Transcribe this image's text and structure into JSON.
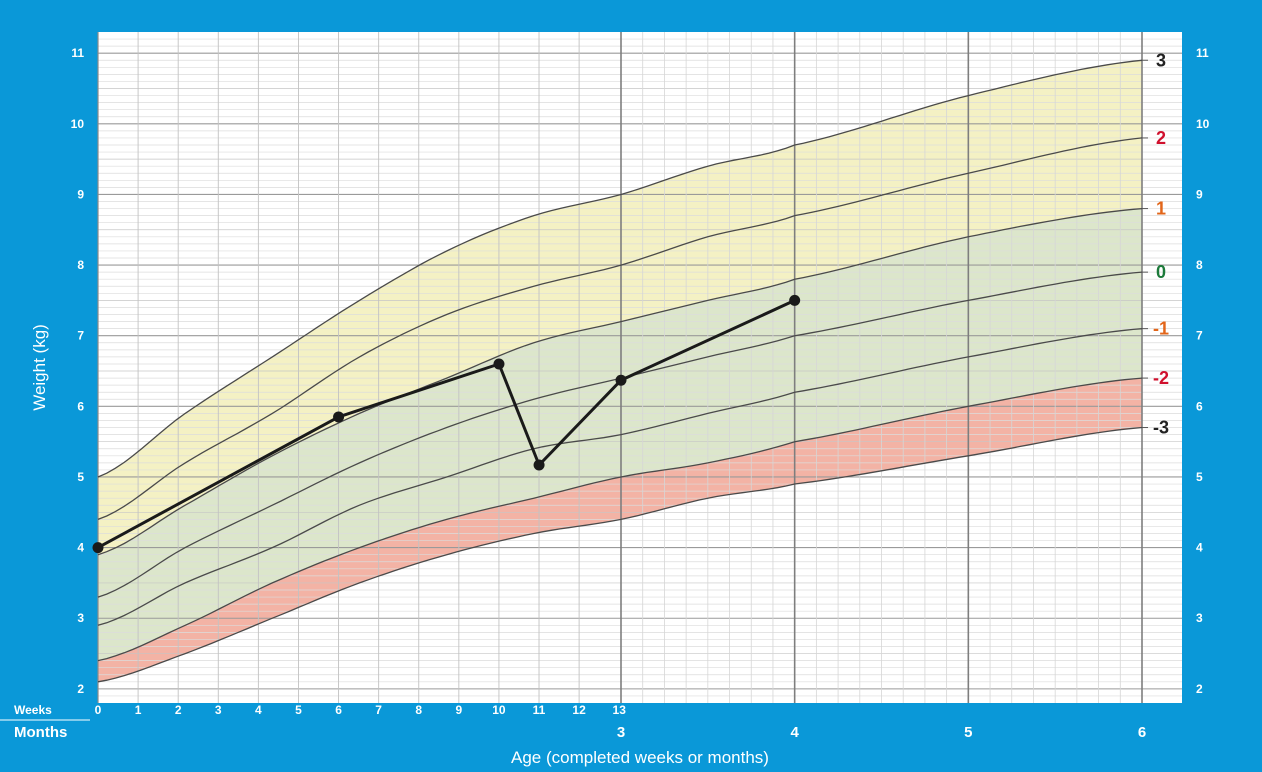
{
  "chart_data": {
    "type": "line",
    "title": "",
    "ylabel": "Weight (kg)",
    "xlabel": "Age (completed weeks or months)",
    "ylim": [
      1.8,
      11.3
    ],
    "yticks": [
      "2",
      "3",
      "4",
      "5",
      "6",
      "7",
      "8",
      "9",
      "10",
      "11"
    ],
    "x_row_labels": {
      "weeks": "Weeks",
      "months": "Months"
    },
    "week_ticks": [
      "0",
      "1",
      "2",
      "3",
      "4",
      "5",
      "6",
      "7",
      "8",
      "9",
      "10",
      "11",
      "12",
      "13"
    ],
    "month_ticks": [
      "3",
      "4",
      "5",
      "6"
    ],
    "zscore_labels": [
      {
        "label": "3",
        "color": "#222222"
      },
      {
        "label": "2",
        "color": "#d0102d"
      },
      {
        "label": "1",
        "color": "#e2661a"
      },
      {
        "label": "0",
        "color": "#1c7a3a"
      },
      {
        "label": "-1",
        "color": "#e2661a"
      },
      {
        "label": "-2",
        "color": "#d0102d"
      },
      {
        "label": "-3",
        "color": "#222222"
      }
    ],
    "reference_curves": {
      "age_months": [
        0,
        0.5,
        1,
        1.5,
        2,
        2.5,
        3,
        3.5,
        4,
        5,
        6
      ],
      "series": [
        {
          "name": "3",
          "values": [
            5.0,
            5.9,
            6.7,
            7.5,
            8.2,
            8.7,
            9.0,
            9.4,
            9.7,
            10.4,
            10.9
          ]
        },
        {
          "name": "2",
          "values": [
            4.4,
            5.2,
            5.9,
            6.7,
            7.3,
            7.7,
            8.0,
            8.4,
            8.7,
            9.3,
            9.8
          ]
        },
        {
          "name": "1",
          "values": [
            3.9,
            4.6,
            5.3,
            5.9,
            6.4,
            6.9,
            7.2,
            7.5,
            7.8,
            8.4,
            8.8
          ]
        },
        {
          "name": "0",
          "values": [
            3.3,
            4.0,
            4.6,
            5.2,
            5.7,
            6.1,
            6.4,
            6.7,
            7.0,
            7.5,
            7.9
          ]
        },
        {
          "name": "-1",
          "values": [
            2.9,
            3.5,
            4.0,
            4.6,
            5.0,
            5.4,
            5.6,
            5.9,
            6.2,
            6.7,
            7.1
          ]
        },
        {
          "name": "-2",
          "values": [
            2.4,
            2.9,
            3.5,
            4.0,
            4.4,
            4.7,
            5.0,
            5.2,
            5.5,
            6.0,
            6.4
          ]
        },
        {
          "name": "-3",
          "values": [
            2.1,
            2.5,
            3.0,
            3.5,
            3.9,
            4.2,
            4.4,
            4.7,
            4.9,
            5.3,
            5.7
          ]
        }
      ]
    },
    "band_colors": {
      "yellow": "#f4f1c4",
      "green": "#dce6cb",
      "red": "#f3b3a5",
      "white": "#ffffff"
    },
    "measurements": {
      "age_months": [
        0,
        1.38,
        2.3,
        2.53,
        3,
        4
      ],
      "weight_kg": [
        4.0,
        5.85,
        6.6,
        5.17,
        6.37,
        7.5
      ]
    }
  }
}
